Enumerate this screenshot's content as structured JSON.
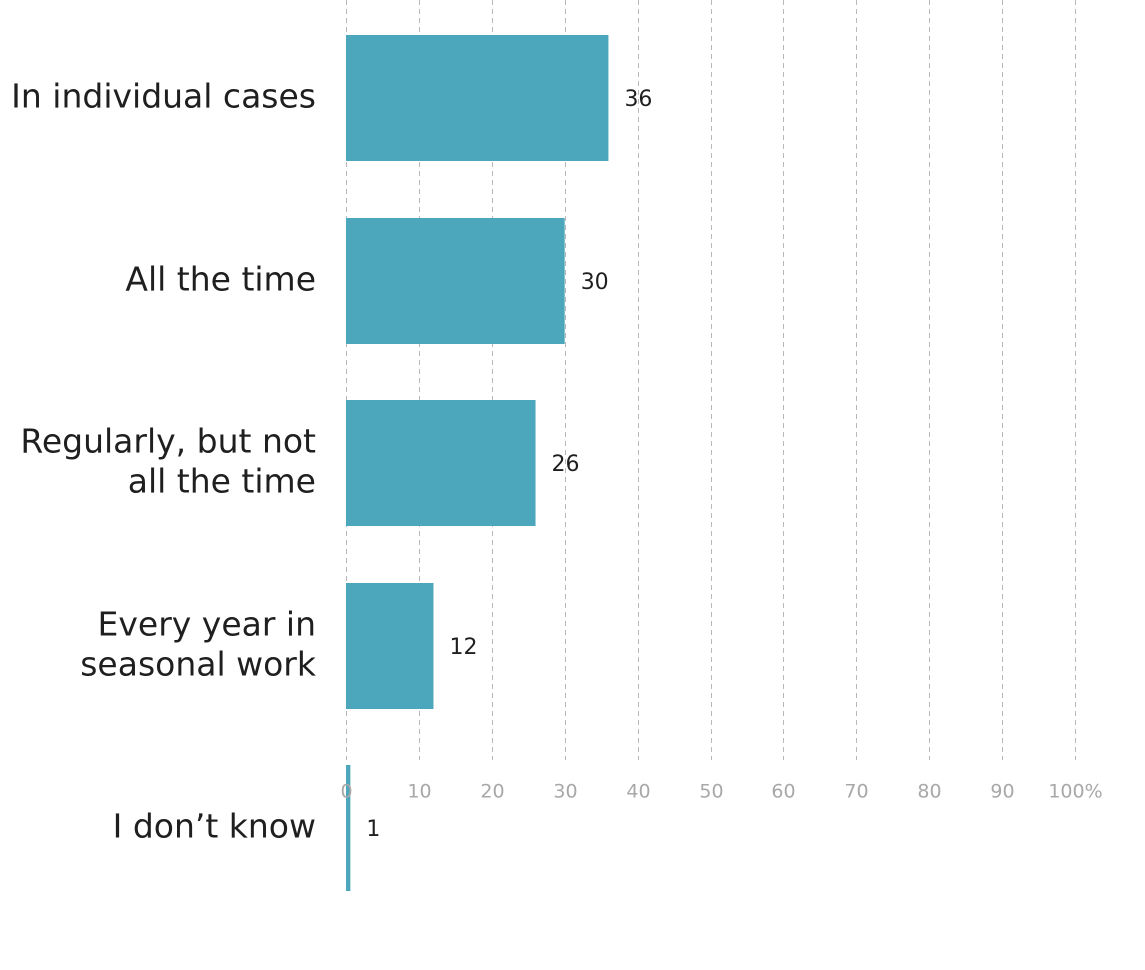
{
  "chart_data": {
    "type": "bar",
    "orientation": "horizontal",
    "categories": [
      [
        "In individual cases"
      ],
      [
        "All the time"
      ],
      [
        "Regularly, but not",
        "all the time"
      ],
      [
        "Every year in",
        "seasonal work"
      ],
      [
        "I don’t know"
      ]
    ],
    "values": [
      36,
      30,
      26,
      12,
      1
    ],
    "bar_values": [
      36,
      30,
      26,
      12,
      0.6
    ],
    "x_ticks": [
      "0",
      "10",
      "20",
      "30",
      "40",
      "50",
      "60",
      "70",
      "80",
      "90",
      "100%"
    ],
    "xlim": [
      0,
      100
    ],
    "grid": true,
    "grid_style": "dashed vertical",
    "legend": "none",
    "colors": {
      "bar": "#4da7bc",
      "grid": "#b8b8b8",
      "tick_text": "#a8a8a8",
      "label_text": "#1f1f1f"
    }
  }
}
